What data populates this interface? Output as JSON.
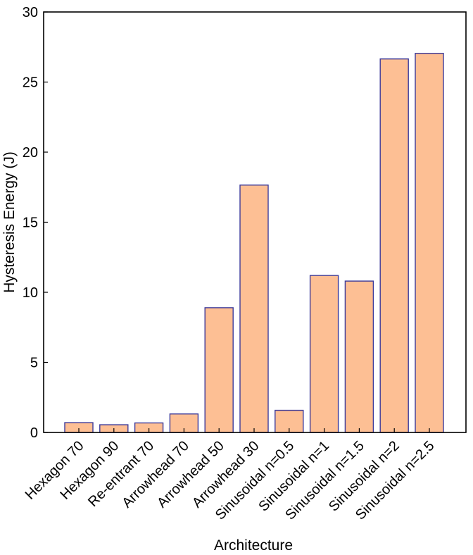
{
  "chart_data": {
    "type": "bar",
    "title": "",
    "xlabel": "Architecture",
    "ylabel": "Hysteresis Energy (J)",
    "ylim": [
      0,
      30
    ],
    "yticks": [
      0,
      5,
      10,
      15,
      20,
      25,
      30
    ],
    "categories": [
      "Hexagon 70",
      "Hexagon 90",
      "Re-entrant 70",
      "Arrowhead 70",
      "Arrowhead 50",
      "Arrowhead 30",
      "Sinusoidal n=0.5",
      "Sinusoidal n=1",
      "Sinusoidal n=1.5",
      "Sinusoidal n=2",
      "Sinusoidal n=2.5"
    ],
    "values": [
      0.7,
      0.55,
      0.68,
      1.32,
      8.9,
      17.65,
      1.58,
      11.2,
      10.8,
      26.65,
      27.05
    ],
    "grid": false,
    "legend": "none",
    "colors": {
      "bar_fill": "#fdbf94",
      "bar_stroke": "#3c3a9a",
      "axis": "#000000"
    }
  }
}
